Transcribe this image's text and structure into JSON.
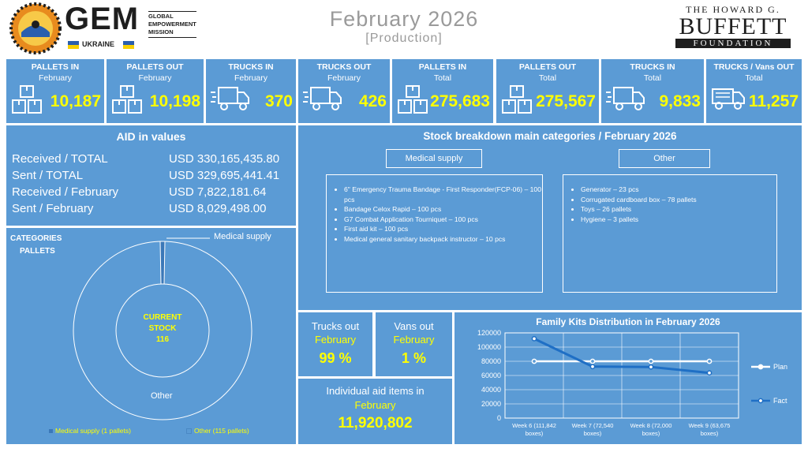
{
  "header": {
    "logo_text": "GEM",
    "logo_country": "UKRAINE",
    "org_line1": "GLOBAL",
    "org_line2": "EMPOWERMENT",
    "org_line3": "MISSION",
    "title": "February 2026",
    "subtitle": "[Production]",
    "partner_line1": "THE HOWARD G.",
    "partner_line2": "BUFFETT",
    "partner_line3": "FOUNDATION"
  },
  "kpis": [
    {
      "title": "PALLETS IN",
      "sub": "February",
      "value": "10,187",
      "icon": "boxes-icon"
    },
    {
      "title": "PALLETS OUT",
      "sub": "February",
      "value": "10,198",
      "icon": "boxes-icon"
    },
    {
      "title": "TRUCKS IN",
      "sub": "February",
      "value": "370",
      "icon": "truck-icon"
    },
    {
      "title": "TRUCKS OUT",
      "sub": "February",
      "value": "426",
      "icon": "truck-icon"
    },
    {
      "title": "PALLETS IN",
      "sub": "Total",
      "value": "275,683",
      "icon": "boxes-icon"
    },
    {
      "title": "PALLETS OUT",
      "sub": "Total",
      "value": "275,567",
      "icon": "boxes-icon"
    },
    {
      "title": "TRUCKS IN",
      "sub": "Total",
      "value": "9,833",
      "icon": "truck-icon"
    },
    {
      "title": "TRUCKS / Vans OUT",
      "sub": "Total",
      "value": "11,257",
      "icon": "van-icon"
    }
  ],
  "aid": {
    "title": "AID in values",
    "rows": [
      {
        "label": "Received / TOTAL",
        "value": "USD 330,165,435.80"
      },
      {
        "label": "Sent / TOTAL",
        "value": "USD 329,695,441.41"
      },
      {
        "label": "Received / February",
        "value": "USD 7,822,181.64"
      },
      {
        "label": "Sent / February",
        "value": "USD 8,029,498.00"
      }
    ]
  },
  "categories": {
    "title_line1": "CATEGORIES",
    "title_line2": "PALLETS",
    "center_line1": "CURRENT",
    "center_line2": "STOCK",
    "center_value": "116",
    "label_medical": "Medical supply",
    "label_other": "Other",
    "legend_medical": "Medical supply (1 pallets)",
    "legend_other": "Other (115 pallets)",
    "colors": {
      "medical": "#3b78b8",
      "other": "#5b9bd5"
    }
  },
  "stock": {
    "title": "Stock breakdown main categories / February 2026",
    "medical_title": "Medical supply",
    "medical_items": [
      "6\" Emergency Trauma Bandage - First Responder(FCP-06) – 100 pcs",
      "Bandage Celox Rapid – 100 pcs",
      "G7 Combat Application Tourniquet – 100 pcs",
      "First aid kit – 100 pcs",
      "Medical general sanitary backpack instructor – 10 pcs"
    ],
    "other_title": "Other",
    "other_items": [
      "Generator – 23 pcs",
      "Corrugated cardboard box – 78 pallets",
      "Toys – 26 pallets",
      "Hygiene – 3 pallets"
    ]
  },
  "share": {
    "trucks_title": "Trucks out",
    "trucks_sub": "February",
    "trucks_value": "99 %",
    "vans_title": "Vans out",
    "vans_sub": "February",
    "vans_value": "1 %"
  },
  "individual": {
    "title": "Individual aid items in",
    "sub": "February",
    "value": "11,920,802"
  },
  "chart_data": {
    "type": "line",
    "title": "Family Kits Distribution in February 2026",
    "categories_line1": [
      "Week 6 (111,842",
      "Week 7 (72,540",
      "Week 8 (72,000",
      "Week 9 (63,675"
    ],
    "categories_line2": [
      "boxes)",
      "boxes)",
      "boxes)",
      "boxes)"
    ],
    "series": [
      {
        "name": "Plan",
        "values": [
          80000,
          80000,
          80000,
          80000
        ],
        "color": "#ffffff"
      },
      {
        "name": "Fact",
        "values": [
          111842,
          72540,
          72000,
          63675
        ],
        "color": "#1f6fc5"
      }
    ],
    "ylim": [
      0,
      120000
    ],
    "yticks": [
      "0",
      "20000",
      "40000",
      "60000",
      "80000",
      "100000",
      "120000"
    ],
    "grid": true,
    "legend": "right"
  }
}
